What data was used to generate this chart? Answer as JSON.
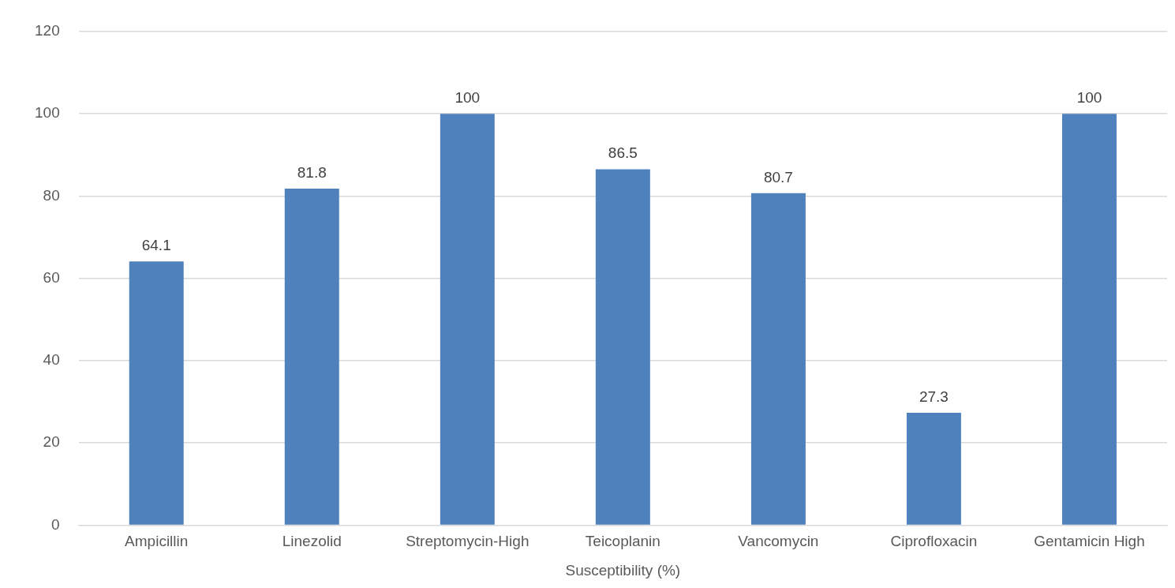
{
  "chart_data": {
    "type": "bar",
    "xlabel": "Susceptibility (%)",
    "categories": [
      "Ampicillin",
      "Linezolid",
      "Streptomycin-High",
      "Teicoplanin",
      "Vancomycin",
      "Ciprofloxacin",
      "Gentamicin High"
    ],
    "values": [
      64.1,
      81.8,
      100,
      86.5,
      80.7,
      27.3,
      100
    ],
    "color": "#4f81bd",
    "ylim": [
      0,
      120
    ],
    "yticks": [
      0,
      20,
      40,
      60,
      80,
      100,
      120
    ],
    "grid": "y",
    "data_labels": true
  }
}
